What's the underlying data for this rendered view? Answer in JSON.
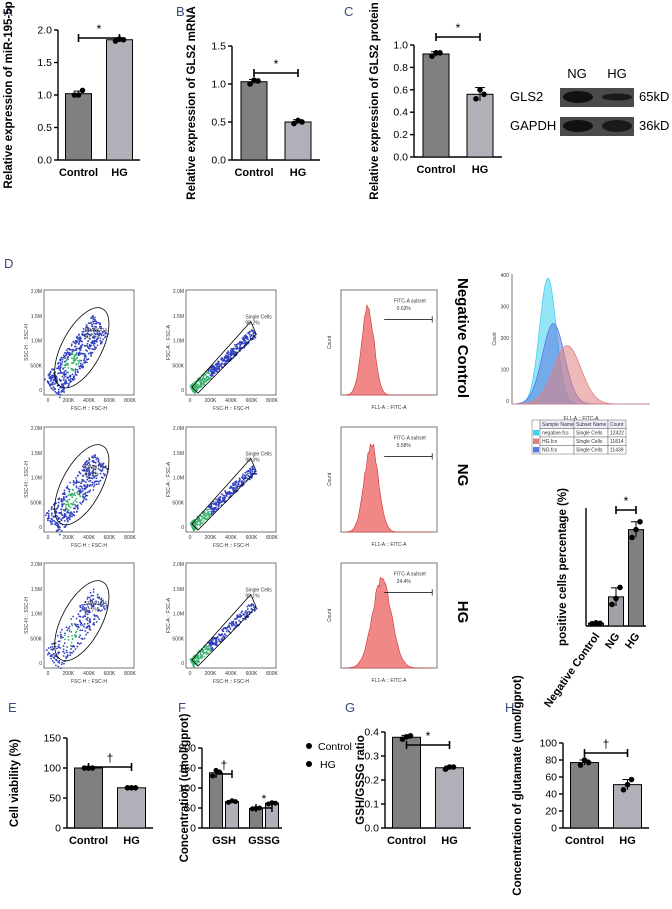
{
  "panel_letters": {
    "A": "A",
    "B": "B",
    "C": "C",
    "D": "D",
    "E": "E",
    "F": "F",
    "G": "G",
    "H": "H"
  },
  "chart_data": [
    {
      "id": "A",
      "type": "bar",
      "categories": [
        "Control",
        "HG"
      ],
      "values": [
        1.02,
        1.85
      ],
      "errors": [
        0.04,
        0.03
      ],
      "points": [
        [
          1.0,
          1.0,
          1.07
        ],
        [
          1.83,
          1.86,
          1.85
        ]
      ],
      "ylabel": "Relative expression of miR-195-5p",
      "ylim": [
        0,
        2.0
      ],
      "yticks": [
        "0.0",
        "0.5",
        "1.0",
        "1.5",
        "2.0"
      ],
      "sig": "*"
    },
    {
      "id": "B",
      "type": "bar",
      "categories": [
        "Control",
        "HG"
      ],
      "values": [
        1.03,
        0.5
      ],
      "errors": [
        0.03,
        0.03
      ],
      "points": [
        [
          1.0,
          1.05,
          1.04
        ],
        [
          0.48,
          0.52,
          0.5
        ]
      ],
      "ylabel": "Relative expression of GLS2 mRNA",
      "ylim": [
        0,
        1.5
      ],
      "yticks": [
        "0.0",
        "0.5",
        "1.0",
        "1.5"
      ],
      "sig": "*"
    },
    {
      "id": "C",
      "type": "bar",
      "categories": [
        "Control",
        "HG"
      ],
      "values": [
        0.92,
        0.56
      ],
      "errors": [
        0.02,
        0.06
      ],
      "points": [
        [
          0.9,
          0.93,
          0.93
        ],
        [
          0.52,
          0.6,
          0.56
        ]
      ],
      "ylabel": "Relative expression of GLS2 protein",
      "ylim": [
        0,
        1.0
      ],
      "yticks": [
        "0.0",
        "0.2",
        "0.4",
        "0.6",
        "0.8",
        "1.0"
      ],
      "sig": "*"
    },
    {
      "id": "D_bar",
      "type": "bar",
      "categories": [
        "Negative Control",
        "NG",
        "HG"
      ],
      "values": [
        0.7,
        7.4,
        24.5
      ],
      "errors": [
        0.2,
        2.3,
        2.0
      ],
      "points": [
        [
          0.6,
          0.8,
          0.7
        ],
        [
          5.5,
          7.0,
          9.8
        ],
        [
          22.5,
          24.5,
          26.5
        ]
      ],
      "ylabel": "positive cells percentage (%)",
      "ylim": [
        0,
        30
      ],
      "sig": "*"
    },
    {
      "id": "E",
      "type": "bar",
      "categories": [
        "Control",
        "HG"
      ],
      "values": [
        100,
        67
      ],
      "errors": [
        0,
        0
      ],
      "points": [
        [
          100,
          100,
          100
        ],
        [
          67,
          67,
          67
        ]
      ],
      "ylabel": "Cell viability (%)",
      "ylim": [
        0,
        150
      ],
      "yticks": [
        "0",
        "50",
        "100",
        "150"
      ],
      "sig": "†"
    },
    {
      "id": "F",
      "type": "bar",
      "categories": [
        "GSH",
        "GSSG"
      ],
      "series": [
        {
          "name": "Control",
          "values": [
            138,
            49
          ],
          "points": [
            [
              130,
              144,
              140
            ],
            [
              48,
              49,
              50
            ]
          ]
        },
        {
          "name": "HG",
          "values": [
            66,
            62
          ],
          "points": [
            [
              64,
              68,
              66
            ],
            [
              60,
              63,
              62
            ]
          ]
        }
      ],
      "ylabel": "Concentration (umol/gprot)",
      "ylim": [
        0,
        200
      ],
      "yticks": [
        "0",
        "50",
        "100",
        "150",
        "200"
      ],
      "sig": [
        "†",
        "*"
      ]
    },
    {
      "id": "G",
      "type": "bar",
      "categories": [
        "Control",
        "HG"
      ],
      "values": [
        0.378,
        0.251
      ],
      "errors": [
        0.008,
        0.007
      ],
      "points": [
        [
          0.37,
          0.38,
          0.384
        ],
        [
          0.245,
          0.254,
          0.254
        ]
      ],
      "ylabel": "GSH/GSSG ratio",
      "ylim": [
        0,
        0.4
      ],
      "yticks": [
        "0.0",
        "0.1",
        "0.2",
        "0.3",
        "0.4"
      ],
      "sig": "*"
    },
    {
      "id": "H",
      "type": "bar",
      "categories": [
        "Control",
        "HG"
      ],
      "values": [
        77,
        51
      ],
      "errors": [
        3,
        6
      ],
      "points": [
        [
          74,
          80,
          77
        ],
        [
          45,
          51,
          57
        ]
      ],
      "ylabel": "Concentration of glutamate (umol/gprot)",
      "ylim": [
        0,
        100
      ],
      "yticks": [
        "0",
        "20",
        "40",
        "60",
        "80",
        "100"
      ],
      "sig": "†"
    }
  ],
  "blot": {
    "header": [
      "NG",
      "HG"
    ],
    "rows": [
      {
        "label": "GLS2",
        "kd": "65kD"
      },
      {
        "label": "GAPDH",
        "kd": "36kD"
      }
    ]
  },
  "flow": {
    "rows": [
      "Negative Control",
      "NG",
      "HG"
    ],
    "col1": {
      "xlabel": "FSC-H :: FSC-H",
      "ylabel": "SSC-H :: SSC-H",
      "gate": "SPA01-04",
      "pct": [
        "90.9%",
        "82.6%",
        "44.7%"
      ]
    },
    "col2": {
      "xlabel": "FSC-H :: FSC-H",
      "ylabel": "FSC-A :: FSC-A",
      "gate": "Single Cells",
      "pct": [
        "95.2%",
        "98.3%",
        "99.1%"
      ]
    },
    "col3": {
      "xlabel": "FL1-A :: FITC-A",
      "ylabel": "Count",
      "gate": "FITC-A subset",
      "pct": [
        "0.63%",
        "5.58%",
        "24.4%"
      ]
    },
    "yticks_scatter": [
      "2.0M",
      "1.5M",
      "1.0M",
      "500K",
      "0"
    ],
    "xticks_scatter": [
      "0",
      "200K",
      "400K",
      "600K",
      "800K"
    ],
    "overlay": {
      "xlabel": "FL1-A :: FITC-A",
      "ylabel": "Count",
      "yticks": [
        "400",
        "300",
        "200",
        "100",
        "0"
      ]
    },
    "legend_table": {
      "headers": [
        "Sample Name",
        "Subset Name",
        "Count"
      ],
      "rows": [
        [
          "negative.fcs",
          "Single Cells",
          "12422"
        ],
        [
          "HG.fcs",
          "Single Cells",
          "11814"
        ],
        [
          "NG.fcs",
          "Single Cells",
          "11439"
        ]
      ]
    }
  },
  "legend_F": {
    "control": "Control",
    "hg": "HG"
  },
  "colors": {
    "dark_bar": "#808080",
    "light_bar": "#b0b0b8",
    "hist": "#f08888",
    "cyan": "#40d0f0",
    "blue": "#5a78e0",
    "pink": "#e08080"
  }
}
